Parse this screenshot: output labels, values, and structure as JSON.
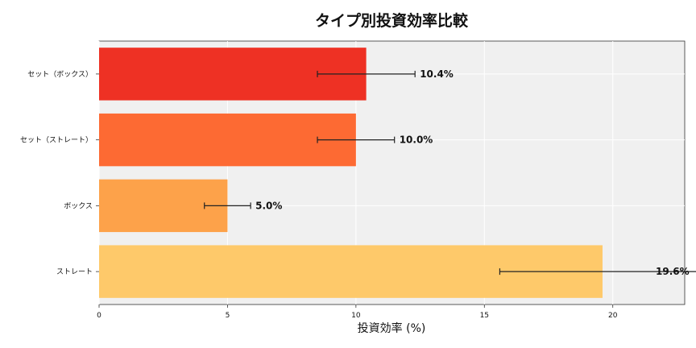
{
  "chart_data": {
    "type": "bar",
    "orientation": "horizontal",
    "title": "タイプ別投資効率比較",
    "xlabel": "投資効率 (%)",
    "ylabel": "",
    "categories": [
      "セット（ボックス）",
      "セット（ストレート）",
      "ボックス",
      "ストレート"
    ],
    "values": [
      10.4,
      10.0,
      5.0,
      19.6
    ],
    "errors": [
      1.9,
      1.5,
      0.9,
      4.0
    ],
    "data_labels": [
      "10.4%",
      "10.0%",
      "5.0%",
      "19.6%"
    ],
    "colors": [
      "#ee3124",
      "#fd6a33",
      "#fda24a",
      "#fec96a"
    ],
    "xlim": [
      0,
      22.8
    ],
    "xticks": [
      0,
      5,
      10,
      15,
      20
    ],
    "grid": true
  }
}
